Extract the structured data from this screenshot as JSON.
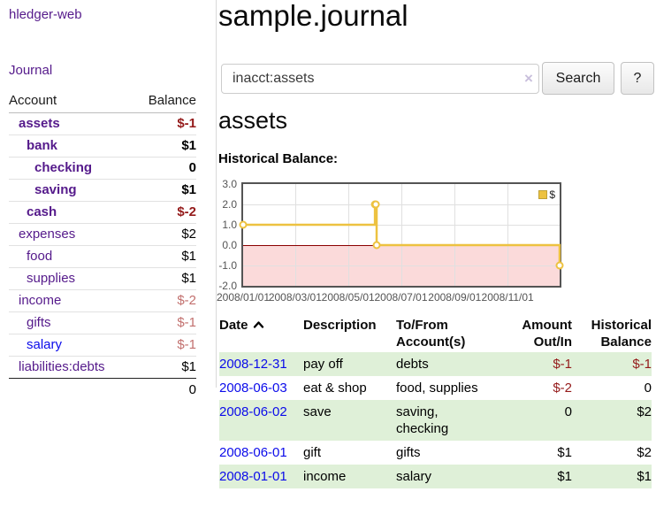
{
  "colors": {
    "link_purple": "#551a8b",
    "link_blue": "#0b0bea",
    "neg_strong": "#941a1a",
    "neg_soft": "#c2706e",
    "row_green": "#dff0d8",
    "chart_pink": "#fbdada",
    "chart_gold": "#edc240",
    "zero_line": "#8b0000"
  },
  "sidebar": {
    "brand": "hledger-web",
    "journal_link": "Journal",
    "accounts_header": {
      "account": "Account",
      "balance": "Balance"
    },
    "accounts": [
      {
        "name": "assets",
        "depth": 1,
        "matched": true,
        "balance": "$-1",
        "balance_class": "neg-strong"
      },
      {
        "name": "bank",
        "depth": 2,
        "matched": true,
        "balance": "$1",
        "balance_class": ""
      },
      {
        "name": "checking",
        "depth": 3,
        "matched": true,
        "balance": "0",
        "balance_class": ""
      },
      {
        "name": "saving",
        "depth": 3,
        "matched": true,
        "balance": "$1",
        "balance_class": ""
      },
      {
        "name": "cash",
        "depth": 2,
        "matched": true,
        "balance": "$-2",
        "balance_class": "neg-strong"
      },
      {
        "name": "expenses",
        "depth": 1,
        "matched": false,
        "balance": "$2",
        "balance_class": ""
      },
      {
        "name": "food",
        "depth": 2,
        "matched": false,
        "balance": "$1",
        "balance_class": ""
      },
      {
        "name": "supplies",
        "depth": 2,
        "matched": false,
        "balance": "$1",
        "balance_class": ""
      },
      {
        "name": "income",
        "depth": 1,
        "matched": false,
        "balance": "$-2",
        "balance_class": "neg-soft"
      },
      {
        "name": "gifts",
        "depth": 2,
        "matched": false,
        "balance": "$-1",
        "balance_class": "neg-soft"
      },
      {
        "name": "salary",
        "depth": 2,
        "matched": false,
        "link_color": "blue",
        "balance": "$-1",
        "balance_class": "neg-soft"
      },
      {
        "name": "liabilities:debts",
        "depth": 1,
        "matched": false,
        "balance": "$1",
        "balance_class": "",
        "last": true
      }
    ],
    "total": "0"
  },
  "main": {
    "title": "sample.journal",
    "search": {
      "value": "inacct:assets",
      "clear_icon": "×",
      "search_label": "Search",
      "help_label": "?"
    },
    "account_heading": "assets",
    "chart_label": "Historical Balance:",
    "register": {
      "headers": [
        {
          "label": "Date",
          "sorted": "asc",
          "align": "left"
        },
        {
          "label": "Description",
          "align": "left"
        },
        {
          "label": "To/From Account(s)",
          "align": "left"
        },
        {
          "label": "Amount Out/In",
          "align": "right"
        },
        {
          "label": "Historical Balance",
          "align": "right"
        }
      ],
      "rows": [
        {
          "date": "2008-12-31",
          "description": "pay off",
          "accounts": "debts",
          "amount": "$-1",
          "amount_negative": true,
          "balance": "$-1",
          "balance_negative": true
        },
        {
          "date": "2008-06-03",
          "description": "eat & shop",
          "accounts": "food, supplies",
          "amount": "$-2",
          "amount_negative": true,
          "balance": "0",
          "balance_negative": false
        },
        {
          "date": "2008-06-02",
          "description": "save",
          "accounts": "saving, checking",
          "amount": "0",
          "amount_negative": false,
          "balance": "$2",
          "balance_negative": false
        },
        {
          "date": "2008-06-01",
          "description": "gift",
          "accounts": "gifts",
          "amount": "$1",
          "amount_negative": false,
          "balance": "$2",
          "balance_negative": false
        },
        {
          "date": "2008-01-01",
          "description": "income",
          "accounts": "salary",
          "amount": "$1",
          "amount_negative": false,
          "balance": "$1",
          "balance_negative": false
        }
      ]
    }
  },
  "chart_data": {
    "type": "line",
    "title": "Historical Balance",
    "step": true,
    "series": [
      {
        "name": "$",
        "color": "#edc240",
        "points": [
          {
            "date": "2008-01-01",
            "value": 1
          },
          {
            "date": "2008-06-01",
            "value": 2
          },
          {
            "date": "2008-06-02",
            "value": 2
          },
          {
            "date": "2008-06-03",
            "value": 0
          },
          {
            "date": "2008-12-31",
            "value": -1
          }
        ]
      }
    ],
    "ylim": [
      -2,
      3
    ],
    "yticks": [
      3,
      2,
      1,
      0,
      -1,
      -2
    ],
    "ytick_labels": [
      "3.0",
      "2.0",
      "1.0",
      "0.0",
      "-1.0",
      "-2.0"
    ],
    "xtick_dates": [
      "2008-01-01",
      "2008-03-01",
      "2008-05-01",
      "2008-07-01",
      "2008-09-01",
      "2008-11-01"
    ],
    "xtick_labels": [
      "2008/01/01",
      "2008/03/01",
      "2008/05/01",
      "2008/07/01",
      "2008/09/01",
      "2008/11/01"
    ],
    "x_range": [
      "2008-01-01",
      "2008-12-31"
    ],
    "grid": true,
    "legend": {
      "label": "$",
      "position": "top-right"
    },
    "negative_region_color": "#fbdada",
    "zero_line_color": "#8b0000"
  }
}
